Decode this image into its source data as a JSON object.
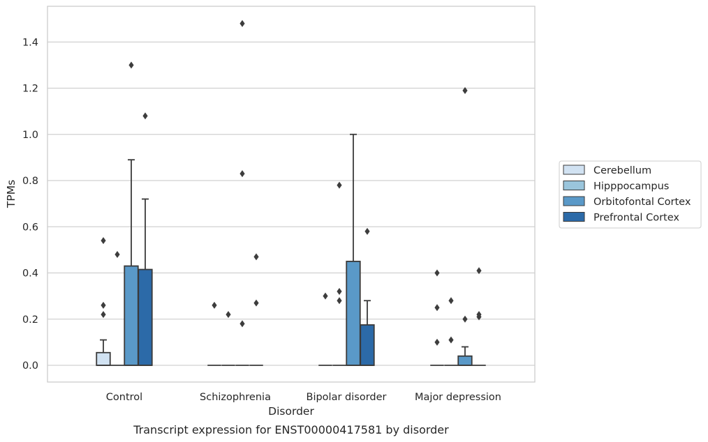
{
  "chart_data": {
    "type": "box",
    "title": "",
    "caption": "Transcript expression for ENST00000417581 by disorder",
    "xlabel": "Disorder",
    "ylabel": "TPMs",
    "ylim": [
      -0.07,
      1.56
    ],
    "yticks": [
      "0.0",
      "0.2",
      "0.4",
      "0.6",
      "0.8",
      "1.0",
      "1.2",
      "1.4"
    ],
    "yticks_values": [
      0.0,
      0.2,
      0.4,
      0.6,
      0.8,
      1.0,
      1.2,
      1.4
    ],
    "grid": "horizontal",
    "legend_position": "right",
    "categories": [
      "Control",
      "Schizophrenia",
      "Bipolar disorder",
      "Major depression"
    ],
    "series": [
      {
        "name": "Cerebellum",
        "color": "#d1e2f2",
        "boxes": [
          {
            "q1": 0,
            "median": 0,
            "q3": 0.055,
            "whisker_low": 0,
            "whisker_high": 0.11,
            "outliers": [
              0.54,
              0.26,
              0.22
            ]
          },
          {
            "q1": 0,
            "median": 0,
            "q3": 0,
            "whisker_low": 0,
            "whisker_high": 0,
            "outliers": [
              0.26
            ]
          },
          {
            "q1": 0,
            "median": 0,
            "q3": 0,
            "whisker_low": 0,
            "whisker_high": 0,
            "outliers": [
              0.3
            ]
          },
          {
            "q1": 0,
            "median": 0,
            "q3": 0,
            "whisker_low": 0,
            "whisker_high": 0,
            "outliers": [
              0.4,
              0.25,
              0.1
            ]
          }
        ]
      },
      {
        "name": "Hipppocampus",
        "color": "#9ac5dc",
        "boxes": [
          {
            "q1": 0,
            "median": 0,
            "q3": 0,
            "whisker_low": 0,
            "whisker_high": 0,
            "outliers": [
              0.48
            ]
          },
          {
            "q1": 0,
            "median": 0,
            "q3": 0,
            "whisker_low": 0,
            "whisker_high": 0,
            "outliers": [
              0.22
            ]
          },
          {
            "q1": 0,
            "median": 0,
            "q3": 0,
            "whisker_low": 0,
            "whisker_high": 0,
            "outliers": [
              0.78,
              0.32,
              0.28
            ]
          },
          {
            "q1": 0,
            "median": 0,
            "q3": 0,
            "whisker_low": 0,
            "whisker_high": 0,
            "outliers": [
              0.28,
              0.11
            ]
          }
        ]
      },
      {
        "name": "Orbitofontal Cortex",
        "color": "#5a99c8",
        "boxes": [
          {
            "q1": 0,
            "median": 0,
            "q3": 0.43,
            "whisker_low": 0,
            "whisker_high": 0.89,
            "outliers": [
              1.3
            ]
          },
          {
            "q1": 0,
            "median": 0,
            "q3": 0,
            "whisker_low": 0,
            "whisker_high": 0,
            "outliers": [
              1.48,
              0.83,
              0.18
            ]
          },
          {
            "q1": 0,
            "median": 0,
            "q3": 0.45,
            "whisker_low": 0,
            "whisker_high": 1.0,
            "outliers": []
          },
          {
            "q1": 0,
            "median": 0,
            "q3": 0.04,
            "whisker_low": 0,
            "whisker_high": 0.08,
            "outliers": [
              1.19,
              0.2
            ]
          }
        ]
      },
      {
        "name": "Prefrontal Cortex",
        "color": "#2c6aa8",
        "boxes": [
          {
            "q1": 0,
            "median": 0,
            "q3": 0.415,
            "whisker_low": 0,
            "whisker_high": 0.72,
            "outliers": [
              1.08
            ]
          },
          {
            "q1": 0,
            "median": 0,
            "q3": 0,
            "whisker_low": 0,
            "whisker_high": 0,
            "outliers": [
              0.47,
              0.27
            ]
          },
          {
            "q1": 0,
            "median": 0,
            "q3": 0.175,
            "whisker_low": 0,
            "whisker_high": 0.28,
            "outliers": [
              0.58
            ]
          },
          {
            "q1": 0,
            "median": 0,
            "q3": 0,
            "whisker_low": 0,
            "whisker_high": 0,
            "outliers": [
              0.41,
              0.22,
              0.21
            ]
          }
        ]
      }
    ]
  }
}
